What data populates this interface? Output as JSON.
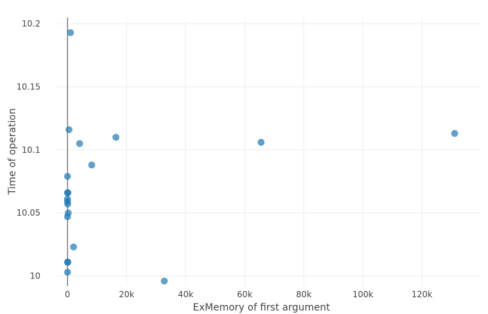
{
  "chart_data": {
    "type": "scatter",
    "title": "",
    "xlabel": "ExMemory of first argument",
    "ylabel": "Time of operation",
    "xlim": [
      -3500,
      140000
    ],
    "ylim": [
      9.992,
      10.205
    ],
    "xticks": [
      0,
      20000,
      40000,
      60000,
      80000,
      100000,
      120000
    ],
    "xtick_labels": [
      "0",
      "20k",
      "40k",
      "60k",
      "80k",
      "100k",
      "120k"
    ],
    "yticks": [
      10,
      10.05,
      10.1,
      10.15,
      10.2
    ],
    "ytick_labels": [
      "10",
      "10.05",
      "10.1",
      "10.15",
      "10.2"
    ],
    "grid": true,
    "legend": false,
    "color": "#1f77b4",
    "points": [
      {
        "x": 1024,
        "y": 10.193
      },
      {
        "x": 512,
        "y": 10.116
      },
      {
        "x": 4096,
        "y": 10.105
      },
      {
        "x": 16384,
        "y": 10.11
      },
      {
        "x": 65536,
        "y": 10.106
      },
      {
        "x": 131072,
        "y": 10.113
      },
      {
        "x": 8192,
        "y": 10.088
      },
      {
        "x": 2048,
        "y": 10.023
      },
      {
        "x": 32768,
        "y": 9.996
      },
      {
        "x": 0,
        "y": 10.079
      },
      {
        "x": 0,
        "y": 10.066
      },
      {
        "x": 128,
        "y": 10.066
      },
      {
        "x": 0,
        "y": 10.061
      },
      {
        "x": 0,
        "y": 10.059
      },
      {
        "x": 64,
        "y": 10.057
      },
      {
        "x": 256,
        "y": 10.05
      },
      {
        "x": 0,
        "y": 10.047
      },
      {
        "x": 0,
        "y": 10.011
      },
      {
        "x": 128,
        "y": 10.011
      },
      {
        "x": 0,
        "y": 10.003
      }
    ]
  }
}
